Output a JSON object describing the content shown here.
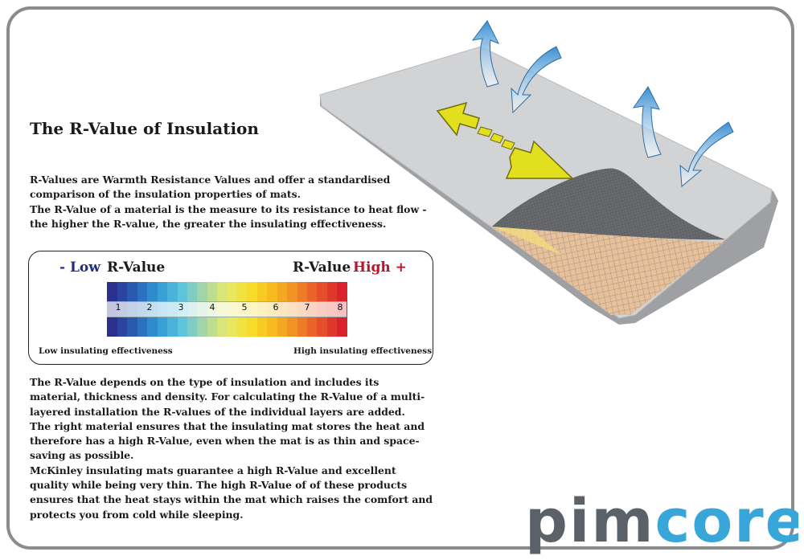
{
  "title": "The R-Value of Insulation",
  "intro_lines": [
    "R-Values are Warmth Resistance Values and offer a standardised",
    "comparison of the insulation properties of mats.",
    "The R-Value of a material is the measure to its resistance to heat flow -",
    "the higher the R-value, the greater the insulating effectiveness."
  ],
  "scale": {
    "low_sign": "- Low",
    "left_label": "R-Value",
    "right_label": "R-Value",
    "high_sign": "High +",
    "ticks": [
      "1",
      "2",
      "3",
      "4",
      "5",
      "6",
      "7",
      "8"
    ],
    "low_caption": "Low insulating effectiveness",
    "high_caption": "High insulating effectiveness",
    "gradient_colors": [
      "#2b2f8e",
      "#2a5fb5",
      "#2f9ad6",
      "#5cc3dc",
      "#a9d6a6",
      "#e7e96a",
      "#f6df2a",
      "#f7b91f",
      "#f08a25",
      "#e8542a",
      "#d8222c"
    ]
  },
  "body_lines": [
    "The R-Value depends on the type of insulation and includes its",
    "material, thickness and density. For calculating the  R-Value of a multi-",
    "layered installation the R-values of the individual layers are added.",
    "The right material ensures that the insulating mat stores the heat and",
    "therefore has a high  R-Value, even when the mat is as thin and space-",
    "saving as possible.",
    "McKinley insulating mats guarantee a high R-Value and excellent",
    "quality while being very thin. The high R-Value of of these products",
    "ensures that the heat stays within the mat which raises the comfort and",
    "protects you from cold while sleeping."
  ],
  "logo": {
    "part1": "pim",
    "part2": "core"
  },
  "colors": {
    "arrow_yellow": "#e2df1f",
    "arrow_blue": "#3c8fd2",
    "mat_top": "#d2d3d5",
    "mat_underside": "#e6c09a",
    "low_blue": "#1f2f7a",
    "high_red": "#c0102a",
    "logo_grey": "#5b6168",
    "logo_blue": "#38a6d8"
  }
}
